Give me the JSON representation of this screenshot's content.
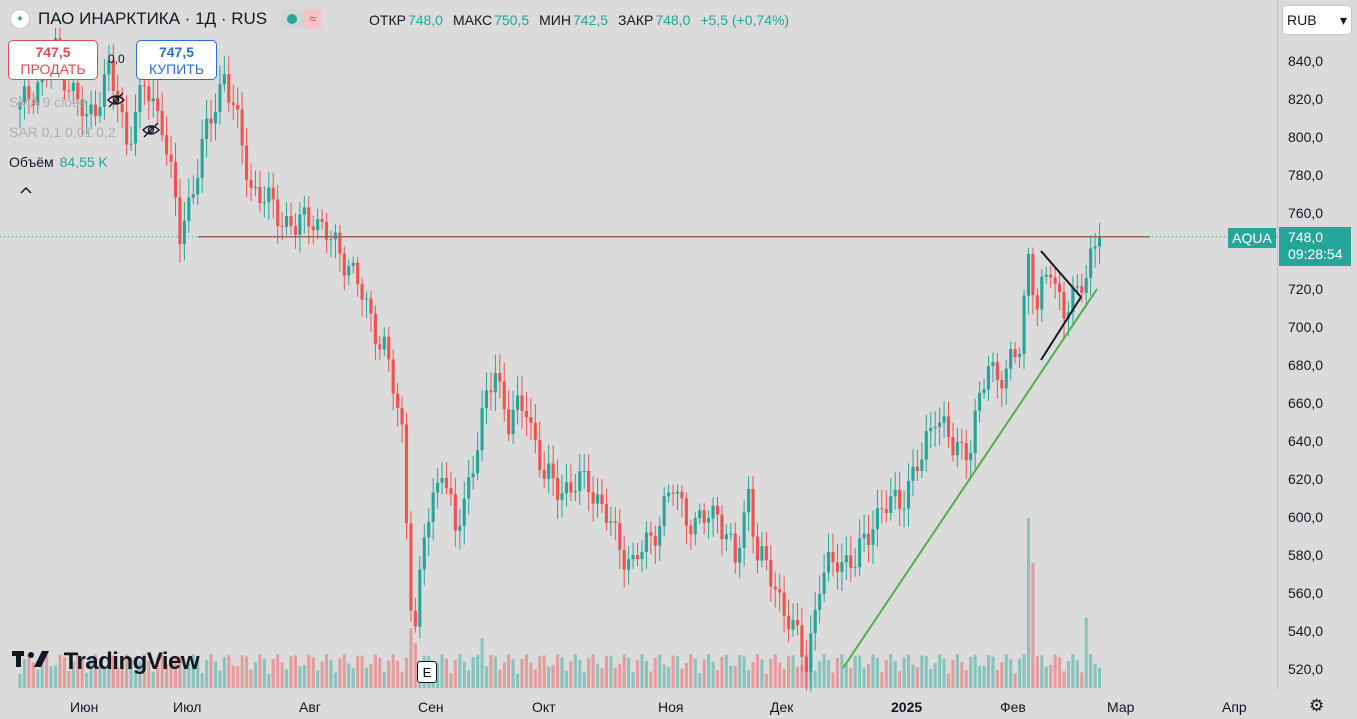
{
  "header": {
    "title": "ПАО ИНАРКТИКА · 1Д · RUS",
    "wave_icon": "≈",
    "ohlc": [
      {
        "label": "ОТКР",
        "value": "748,0"
      },
      {
        "label": "МАКС",
        "value": "750,5"
      },
      {
        "label": "МИН",
        "value": "742,5"
      },
      {
        "label": "ЗАКР",
        "value": "748,0"
      }
    ],
    "change": "+5,5 (+0,74%)"
  },
  "trade": {
    "sell_price": "747,5",
    "sell_label": "ПРОДАТЬ",
    "buy_price": "747,5",
    "buy_label": "КУПИТЬ",
    "spread": "0,0"
  },
  "indicators": {
    "sma": "SMA 9 close",
    "sar": "SAR 0,1 0,01 0,2",
    "volume_label": "Объём",
    "volume_value": "84,55 K"
  },
  "currency": "RUB",
  "symbol_tag": "AQUA",
  "last_price": "748,0",
  "countdown": "09:28:54",
  "brand": "TradingView",
  "earnings_badge": "E",
  "colors": {
    "up": "#26a69a",
    "down": "#ef5350",
    "level": "#e0424c",
    "trend": "#4caf50"
  },
  "chart_data": {
    "type": "candlestick",
    "ylim": [
      510,
      855
    ],
    "yticks": [
      "520,0",
      "540,0",
      "560,0",
      "580,0",
      "600,0",
      "620,0",
      "640,0",
      "660,0",
      "680,0",
      "700,0",
      "720,0",
      "740,0",
      "760,0",
      "780,0",
      "800,0",
      "820,0",
      "840,0"
    ],
    "ytick_values": [
      520,
      540,
      560,
      580,
      600,
      620,
      640,
      660,
      680,
      700,
      720,
      740,
      760,
      780,
      800,
      820,
      840
    ],
    "xticks": [
      "Июн",
      "Июл",
      "Авг",
      "Сен",
      "Окт",
      "Ноя",
      "Дек",
      "2025",
      "Фев",
      "Мар",
      "Апр"
    ],
    "horizontal_level": 748.0,
    "anchors": [
      {
        "d": 0,
        "p": 815
      },
      {
        "d": 8,
        "p": 845
      },
      {
        "d": 15,
        "p": 808
      },
      {
        "d": 20,
        "p": 835
      },
      {
        "d": 24,
        "p": 800
      },
      {
        "d": 28,
        "p": 826
      },
      {
        "d": 32,
        "p": 810
      },
      {
        "d": 36,
        "p": 748
      },
      {
        "d": 40,
        "p": 785
      },
      {
        "d": 46,
        "p": 835
      },
      {
        "d": 52,
        "p": 775
      },
      {
        "d": 56,
        "p": 765
      },
      {
        "d": 62,
        "p": 752
      },
      {
        "d": 66,
        "p": 760
      },
      {
        "d": 70,
        "p": 745
      },
      {
        "d": 74,
        "p": 735
      },
      {
        "d": 78,
        "p": 710
      },
      {
        "d": 82,
        "p": 690
      },
      {
        "d": 86,
        "p": 645
      },
      {
        "d": 88,
        "p": 560
      },
      {
        "d": 89,
        "p": 540
      },
      {
        "d": 91,
        "p": 590
      },
      {
        "d": 95,
        "p": 630
      },
      {
        "d": 98,
        "p": 590
      },
      {
        "d": 102,
        "p": 630
      },
      {
        "d": 107,
        "p": 680
      },
      {
        "d": 110,
        "p": 650
      },
      {
        "d": 114,
        "p": 660
      },
      {
        "d": 118,
        "p": 620
      },
      {
        "d": 124,
        "p": 615
      },
      {
        "d": 128,
        "p": 620
      },
      {
        "d": 134,
        "p": 590
      },
      {
        "d": 138,
        "p": 575
      },
      {
        "d": 142,
        "p": 590
      },
      {
        "d": 147,
        "p": 615
      },
      {
        "d": 152,
        "p": 595
      },
      {
        "d": 157,
        "p": 605
      },
      {
        "d": 161,
        "p": 575
      },
      {
        "d": 164,
        "p": 615
      },
      {
        "d": 166,
        "p": 580
      },
      {
        "d": 170,
        "p": 565
      },
      {
        "d": 174,
        "p": 540
      },
      {
        "d": 177,
        "p": 525
      },
      {
        "d": 180,
        "p": 565
      },
      {
        "d": 184,
        "p": 580
      },
      {
        "d": 188,
        "p": 575
      },
      {
        "d": 192,
        "p": 600
      },
      {
        "d": 198,
        "p": 610
      },
      {
        "d": 203,
        "p": 630
      },
      {
        "d": 206,
        "p": 658
      },
      {
        "d": 210,
        "p": 635
      },
      {
        "d": 214,
        "p": 640
      },
      {
        "d": 218,
        "p": 680
      },
      {
        "d": 222,
        "p": 675
      },
      {
        "d": 225,
        "p": 690
      },
      {
        "d": 227,
        "p": 740
      },
      {
        "d": 229,
        "p": 710
      },
      {
        "d": 232,
        "p": 732
      },
      {
        "d": 235,
        "p": 710
      },
      {
        "d": 238,
        "p": 715
      },
      {
        "d": 241,
        "p": 740
      },
      {
        "d": 243,
        "p": 748
      }
    ],
    "markers": [
      "earnings"
    ]
  }
}
